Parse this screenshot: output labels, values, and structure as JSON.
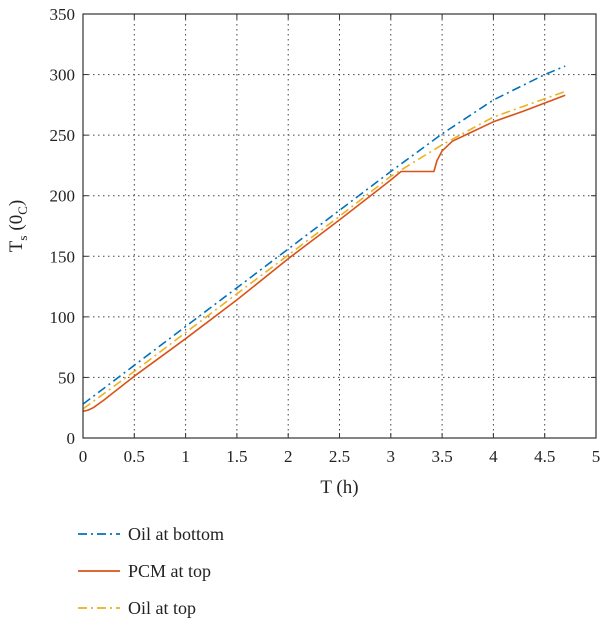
{
  "chart_data": {
    "type": "line",
    "xlabel": "T (h)",
    "ylabel": {
      "main": "T",
      "sub": "s",
      "paren": "(0",
      "paren_sub": "C",
      "close": ")"
    },
    "xlim": [
      0,
      5
    ],
    "ylim": [
      0,
      350
    ],
    "xticks": [
      0,
      0.5,
      1,
      1.5,
      2,
      2.5,
      3,
      3.5,
      4,
      4.5,
      5
    ],
    "yticks": [
      0,
      50,
      100,
      150,
      200,
      250,
      300,
      350
    ],
    "xtick_labels": [
      "0",
      "0.5",
      "1",
      "1.5",
      "2",
      "2.5",
      "3",
      "3.5",
      "4",
      "4.5",
      "5"
    ],
    "ytick_labels": [
      "0",
      "50",
      "100",
      "150",
      "200",
      "250",
      "300",
      "350"
    ],
    "grid": true,
    "grid_style": "dotted",
    "legend_position": "below",
    "series": [
      {
        "name": "Oil at bottom",
        "color": "#0072BD",
        "style": "dashdot",
        "x": [
          0,
          0.5,
          1,
          1.5,
          2,
          2.5,
          3,
          3.5,
          4,
          4.5,
          4.7
        ],
        "y": [
          28,
          60,
          92,
          124,
          156,
          188,
          220,
          251,
          279,
          300,
          307
        ]
      },
      {
        "name": "PCM at top",
        "color": "#D95319",
        "style": "solid",
        "x": [
          0,
          0.05,
          0.1,
          0.2,
          0.5,
          1,
          1.5,
          2,
          2.5,
          3,
          3.1,
          3.42,
          3.45,
          3.5,
          3.6,
          3.8,
          4,
          4.3,
          4.7
        ],
        "y": [
          22,
          23,
          25,
          31,
          51,
          82,
          114,
          148,
          180,
          213,
          220,
          220,
          229,
          237,
          245,
          253,
          261,
          270,
          283
        ]
      },
      {
        "name": "Oil at top",
        "color": "#EDB120",
        "style": "dashdot",
        "x": [
          0,
          0.5,
          1,
          1.5,
          2,
          2.5,
          3,
          3.5,
          4,
          4.5,
          4.7
        ],
        "y": [
          24,
          55,
          87,
          119,
          151,
          183,
          216,
          242,
          265,
          280,
          286
        ]
      }
    ]
  }
}
